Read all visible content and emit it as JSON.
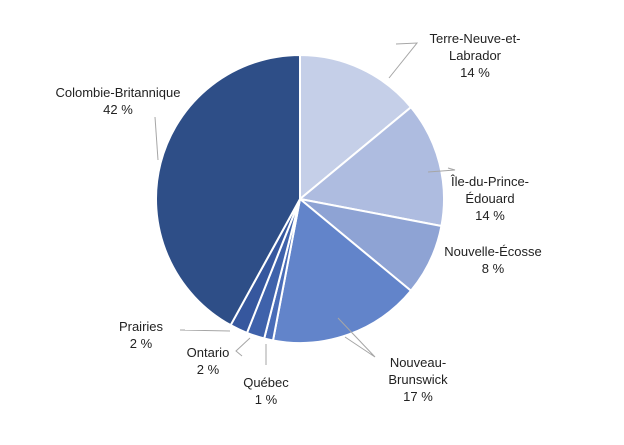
{
  "chart_data": {
    "type": "pie",
    "title": "",
    "start_angle_deg": 0,
    "direction": "clockwise",
    "unit": "%",
    "slices": [
      {
        "label": "Terre-Neuve-et-Labrador",
        "label_lines": [
          "Terre-Neuve-et-",
          "Labrador"
        ],
        "value": 14,
        "value_label": "14 %",
        "color": "#c5cfe8"
      },
      {
        "label": "Île-du-Prince-Édouard",
        "label_lines": [
          "Île-du-Prince-",
          "Édouard"
        ],
        "value": 14,
        "value_label": "14 %",
        "color": "#aebce0"
      },
      {
        "label": "Nouvelle-Écosse",
        "label_lines": [
          "Nouvelle-Écosse"
        ],
        "value": 8,
        "value_label": "8 %",
        "color": "#8ea3d4"
      },
      {
        "label": "Nouveau-Brunswick",
        "label_lines": [
          "Nouveau-",
          "Brunswick"
        ],
        "value": 17,
        "value_label": "17 %",
        "color": "#6284ca"
      },
      {
        "label": "Québec",
        "label_lines": [
          "Québec"
        ],
        "value": 1,
        "value_label": "1 %",
        "color": "#4a6db8"
      },
      {
        "label": "Ontario",
        "label_lines": [
          "Ontario"
        ],
        "value": 2,
        "value_label": "2 %",
        "color": "#3f62ab"
      },
      {
        "label": "Prairies",
        "label_lines": [
          "Prairies"
        ],
        "value": 2,
        "value_label": "2 %",
        "color": "#36579e"
      },
      {
        "label": "Colombie-Britannique",
        "label_lines": [
          "Colombie-Britannique"
        ],
        "value": 42,
        "value_label": "42 %",
        "color": "#2e4e87"
      }
    ]
  }
}
